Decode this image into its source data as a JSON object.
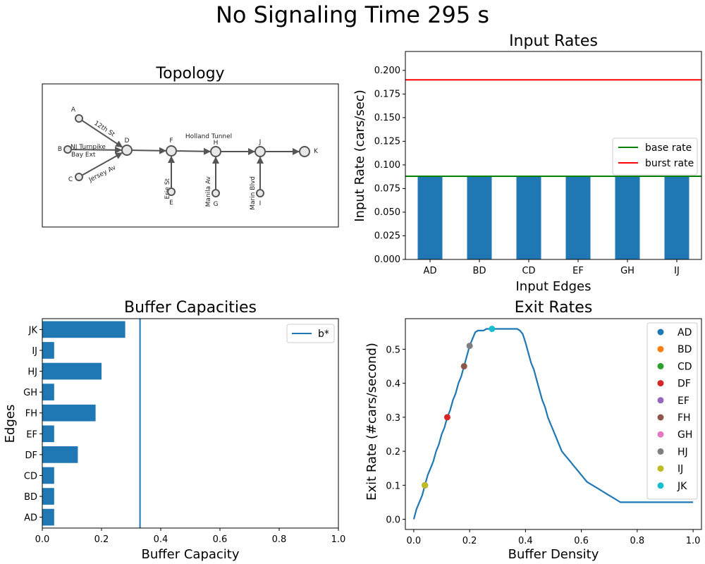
{
  "figure": {
    "title": "No Signaling Time 295 s"
  },
  "chart_data": [
    {
      "type": "diagram",
      "title": "Topology",
      "nodes": [
        {
          "id": "A",
          "label": "A"
        },
        {
          "id": "B",
          "label": "B"
        },
        {
          "id": "C",
          "label": "C"
        },
        {
          "id": "D",
          "label": "D"
        },
        {
          "id": "E",
          "label": "E"
        },
        {
          "id": "F",
          "label": "F"
        },
        {
          "id": "G",
          "label": "G"
        },
        {
          "id": "H",
          "label": "H"
        },
        {
          "id": "I",
          "label": "I"
        },
        {
          "id": "J",
          "label": "J"
        },
        {
          "id": "K",
          "label": "K"
        }
      ],
      "edges": [
        {
          "from": "A",
          "to": "D",
          "label": "12th St"
        },
        {
          "from": "B",
          "to": "D",
          "label": "NJ Turnpike Bay Ext"
        },
        {
          "from": "C",
          "to": "D",
          "label": "Jersey Av"
        },
        {
          "from": "D",
          "to": "F",
          "label": ""
        },
        {
          "from": "E",
          "to": "F",
          "label": "Erie St"
        },
        {
          "from": "F",
          "to": "H",
          "label": ""
        },
        {
          "from": "G",
          "to": "H",
          "label": "Manila Av"
        },
        {
          "from": "H",
          "to": "J",
          "label": "Holland Tunnel"
        },
        {
          "from": "I",
          "to": "J",
          "label": "Marin Blvd"
        },
        {
          "from": "J",
          "to": "K",
          "label": ""
        }
      ]
    },
    {
      "type": "bar",
      "title": "Input Rates",
      "xlabel": "Input Edges",
      "ylabel": "Input Rate (cars/sec)",
      "categories": [
        "AD",
        "BD",
        "CD",
        "EF",
        "GH",
        "IJ"
      ],
      "values": [
        0.088,
        0.088,
        0.088,
        0.088,
        0.088,
        0.088
      ],
      "ylim": [
        0,
        0.22
      ],
      "yticks": [
        "0.000",
        "0.025",
        "0.050",
        "0.075",
        "0.100",
        "0.125",
        "0.150",
        "0.175",
        "0.200"
      ],
      "hlines": [
        {
          "name": "base rate",
          "value": 0.088,
          "color": "#008000"
        },
        {
          "name": "burst rate",
          "value": 0.19,
          "color": "#ff0000"
        }
      ],
      "bar_color": "#1f77b4",
      "legend": "center-right"
    },
    {
      "type": "bar",
      "orientation": "horizontal",
      "title": "Buffer Capacities",
      "xlabel": "Buffer Capacity",
      "ylabel": "Edges",
      "categories": [
        "AD",
        "BD",
        "CD",
        "DF",
        "EF",
        "FH",
        "GH",
        "HJ",
        "IJ",
        "JK"
      ],
      "values": [
        0.04,
        0.04,
        0.04,
        0.12,
        0.04,
        0.18,
        0.04,
        0.2,
        0.04,
        0.28
      ],
      "xlim": [
        0,
        1.0
      ],
      "xticks": [
        "0.0",
        "0.2",
        "0.4",
        "0.6",
        "0.8",
        "1.0"
      ],
      "vline": {
        "name": "b*",
        "value": 0.33,
        "color": "#1f77b4"
      },
      "bar_color": "#1f77b4",
      "legend": "top-right"
    },
    {
      "type": "line",
      "title": "Exit Rates",
      "xlabel": "Buffer Density",
      "ylabel": "Exit Rate (#cars/second)",
      "xlim": [
        -0.03,
        1.03
      ],
      "ylim": [
        -0.03,
        0.59
      ],
      "xticks": [
        "0.0",
        "0.2",
        "0.4",
        "0.6",
        "0.8",
        "1.0"
      ],
      "yticks": [
        "0.0",
        "0.1",
        "0.2",
        "0.3",
        "0.4",
        "0.5"
      ],
      "line": {
        "color": "#1f77b4",
        "x": [
          0,
          0.01,
          0.02,
          0.03,
          0.04,
          0.05,
          0.06,
          0.07,
          0.08,
          0.09,
          0.1,
          0.11,
          0.12,
          0.13,
          0.14,
          0.15,
          0.16,
          0.17,
          0.18,
          0.19,
          0.2,
          0.21,
          0.22,
          0.23,
          0.24,
          0.25,
          0.26,
          0.28,
          0.3,
          0.32,
          0.34,
          0.36,
          0.37,
          0.38,
          0.39,
          0.4,
          0.41,
          0.42,
          0.43,
          0.44,
          0.45,
          0.46,
          0.47,
          0.48,
          0.49,
          0.5,
          0.51,
          0.52,
          0.53,
          0.54,
          0.55,
          0.56,
          0.57,
          0.58,
          0.59,
          0.6,
          0.61,
          0.62,
          0.63,
          0.64,
          0.65,
          0.66,
          0.67,
          0.68,
          0.69,
          0.7,
          0.71,
          0.72,
          0.73,
          0.74,
          0.75,
          0.8,
          0.85,
          0.9,
          0.95,
          1.0
        ],
        "y": [
          0,
          0.03,
          0.05,
          0.07,
          0.1,
          0.13,
          0.15,
          0.17,
          0.2,
          0.22,
          0.25,
          0.27,
          0.3,
          0.32,
          0.35,
          0.37,
          0.4,
          0.42,
          0.45,
          0.48,
          0.51,
          0.53,
          0.55,
          0.555,
          0.555,
          0.555,
          0.56,
          0.56,
          0.56,
          0.56,
          0.56,
          0.56,
          0.56,
          0.555,
          0.545,
          0.52,
          0.49,
          0.46,
          0.44,
          0.41,
          0.38,
          0.35,
          0.33,
          0.3,
          0.28,
          0.26,
          0.24,
          0.22,
          0.2,
          0.19,
          0.18,
          0.17,
          0.16,
          0.15,
          0.14,
          0.13,
          0.12,
          0.11,
          0.105,
          0.1,
          0.095,
          0.09,
          0.085,
          0.08,
          0.075,
          0.07,
          0.065,
          0.06,
          0.055,
          0.05,
          0.05,
          0.05,
          0.05,
          0.05,
          0.05,
          0.05
        ]
      },
      "points": [
        {
          "name": "AD",
          "x": 0.04,
          "y": 0.1,
          "color": "#1f77b4"
        },
        {
          "name": "BD",
          "x": 0.04,
          "y": 0.1,
          "color": "#ff7f0e"
        },
        {
          "name": "CD",
          "x": 0.04,
          "y": 0.1,
          "color": "#2ca02c"
        },
        {
          "name": "DF",
          "x": 0.12,
          "y": 0.3,
          "color": "#d62728"
        },
        {
          "name": "EF",
          "x": 0.04,
          "y": 0.1,
          "color": "#9467bd"
        },
        {
          "name": "FH",
          "x": 0.18,
          "y": 0.45,
          "color": "#8c564b"
        },
        {
          "name": "GH",
          "x": 0.04,
          "y": 0.1,
          "color": "#e377c2"
        },
        {
          "name": "HJ",
          "x": 0.2,
          "y": 0.51,
          "color": "#7f7f7f"
        },
        {
          "name": "IJ",
          "x": 0.04,
          "y": 0.1,
          "color": "#bcbd22"
        },
        {
          "name": "JK",
          "x": 0.28,
          "y": 0.56,
          "color": "#17becf"
        }
      ],
      "legend": "top-right"
    }
  ]
}
